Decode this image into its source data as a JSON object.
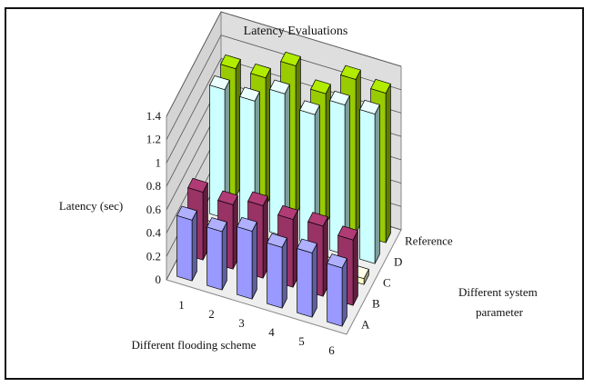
{
  "chart_data": {
    "type": "bar",
    "title": "Latency Evaluations",
    "ylabel": "Latency (sec)",
    "xlabel": "Different flooding scheme",
    "zlabel": "Different system parameter",
    "categories": [
      "1",
      "2",
      "3",
      "4",
      "5",
      "6"
    ],
    "y_ticks": [
      "0",
      "0.2",
      "0.4",
      "0.6",
      "0.8",
      "1",
      "1.2",
      "1.4"
    ],
    "ylim": [
      0,
      1.4
    ],
    "grid": true,
    "series": [
      {
        "name": "A",
        "color": "#9999ff",
        "values": [
          0.52,
          0.5,
          0.58,
          0.52,
          0.55,
          0.5
        ]
      },
      {
        "name": "B",
        "color": "#993366",
        "values": [
          0.58,
          0.55,
          0.62,
          0.58,
          0.6,
          0.56
        ]
      },
      {
        "name": "C",
        "color": "#ffffcc",
        "values": [
          0.05,
          0.05,
          0.05,
          0.05,
          0.05,
          0.05
        ]
      },
      {
        "name": "D",
        "color": "#ccffff",
        "values": [
          1.1,
          1.08,
          1.22,
          1.12,
          1.28,
          1.28
        ]
      },
      {
        "name": "Reference",
        "color": "#99cc00",
        "values": [
          1.1,
          1.1,
          1.28,
          1.12,
          1.32,
          1.28
        ]
      }
    ]
  }
}
